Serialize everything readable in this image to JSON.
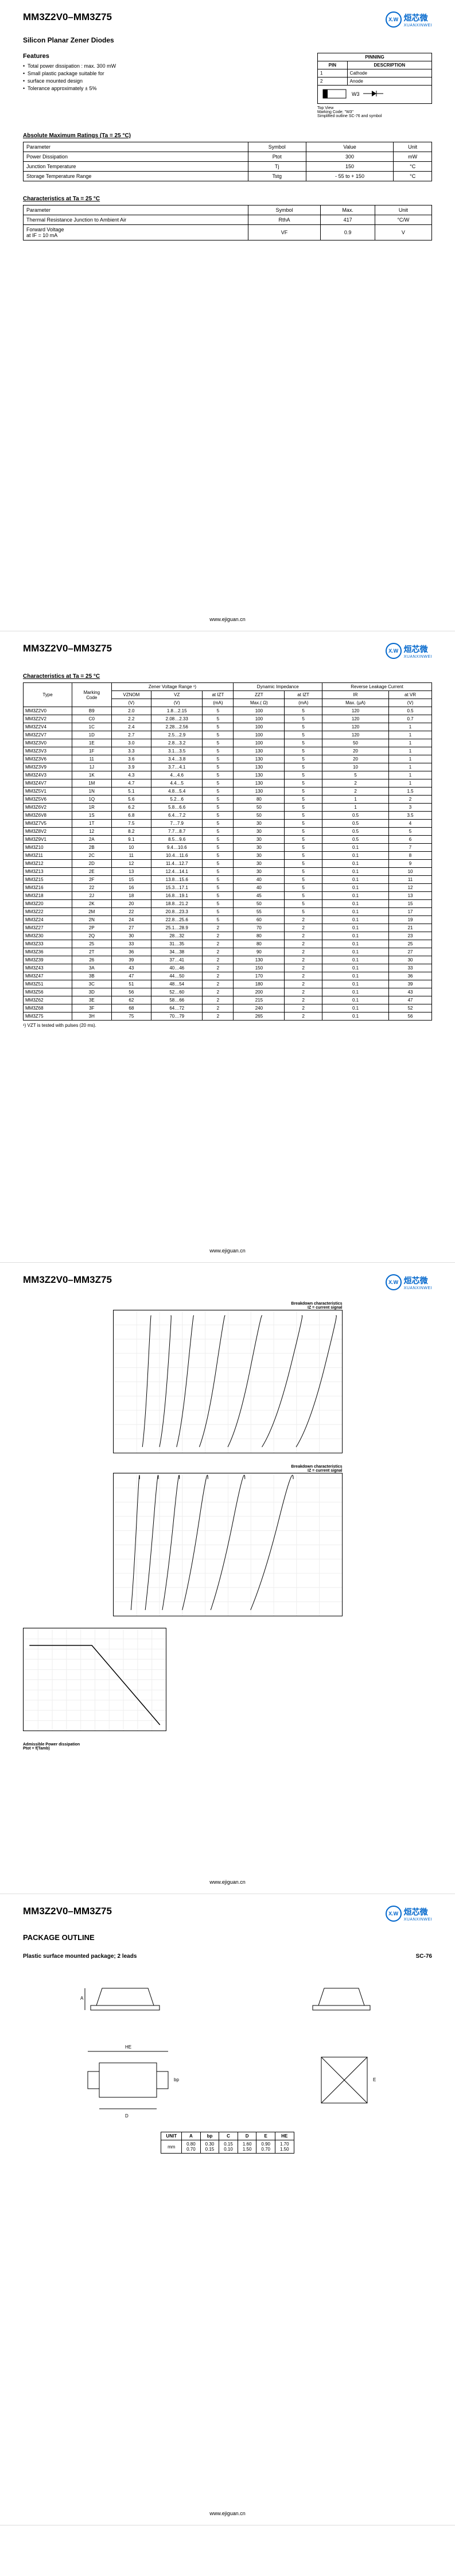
{
  "header": {
    "title": "MM3Z2V0–MM3Z75",
    "logo_cn": "烜芯微",
    "logo_en": "XUANXINWEI",
    "logo_abbr": "X.W"
  },
  "page1": {
    "subtitle": "Silicon Planar Zener Diodes",
    "features_title": "Features",
    "features": [
      "Total power dissipation : max. 300 mW",
      "Small plastic package suitable for",
      "surface mounted design",
      "Tolerance approximately ± 5%"
    ],
    "pinning": {
      "title": "PINNING",
      "cols": [
        "PIN",
        "DESCRIPTION"
      ],
      "rows": [
        [
          "1",
          "Cathode"
        ],
        [
          "2",
          "Anode"
        ]
      ],
      "label": "W3",
      "note1": "Top View",
      "note2": "Marking Code: \"W3\"",
      "note3": "Simplified outline SC-76 and symbol"
    },
    "abs_max": {
      "title": "Absolute Maximum Ratings (Ta = 25 °C)",
      "cols": [
        "Parameter",
        "Symbol",
        "Value",
        "Unit"
      ],
      "rows": [
        [
          "Power Dissipation",
          "Ptot",
          "300",
          "mW"
        ],
        [
          "Junction Temperature",
          "Tj",
          "150",
          "°C"
        ],
        [
          "Storage Temperature Range",
          "Tstg",
          "- 55 to + 150",
          "°C"
        ]
      ]
    },
    "char25": {
      "title": "Characteristics at Ta = 25 °C",
      "cols": [
        "Parameter",
        "Symbol",
        "Max.",
        "Unit"
      ],
      "rows": [
        [
          "Thermal Resistance Junction to Ambient Air",
          "RthA",
          "417",
          "°C/W"
        ],
        [
          "Forward Voltage\nat IF = 10 mA",
          "VF",
          "0.9",
          "V"
        ]
      ]
    }
  },
  "page2": {
    "char_title": "Characteristics at Ta = 25 °C",
    "headers": {
      "type": "Type",
      "marking": "Marking\nCode",
      "zener": "Zener Voltage Range ¹)",
      "dynamic": "Dynamic Impedance",
      "reverse": "Reverse Leakage Current",
      "vznom": "VZNOM",
      "vz": "VZ",
      "atiz": "at IZT",
      "zzt": "ZZT",
      "atiz2": "at IZT",
      "ir": "IR",
      "atvr": "at VR",
      "unit_v": "(V)",
      "unit_v2": "(V)",
      "unit_ma": "(mA)",
      "unit_ohm": "Max.( Ω)",
      "unit_ma2": "(mA)",
      "unit_ua": "Max. (μA)",
      "unit_v3": "(V)"
    },
    "rows": [
      [
        "MM3Z2V0",
        "B9",
        "2.0",
        "1.8…2.15",
        "5",
        "100",
        "5",
        "120",
        "0.5"
      ],
      [
        "MM3Z2V2",
        "C0",
        "2.2",
        "2.08…2.33",
        "5",
        "100",
        "5",
        "120",
        "0.7"
      ],
      [
        "MM3Z2V4",
        "1C",
        "2.4",
        "2.28…2.56",
        "5",
        "100",
        "5",
        "120",
        "1"
      ],
      [
        "MM3Z2V7",
        "1D",
        "2.7",
        "2.5…2.9",
        "5",
        "100",
        "5",
        "120",
        "1"
      ],
      [
        "MM3Z3V0",
        "1E",
        "3.0",
        "2.8…3.2",
        "5",
        "100",
        "5",
        "50",
        "1"
      ],
      [
        "MM3Z3V3",
        "1F",
        "3.3",
        "3.1…3.5",
        "5",
        "130",
        "5",
        "20",
        "1"
      ],
      [
        "MM3Z3V6",
        "11",
        "3.6",
        "3.4…3.8",
        "5",
        "130",
        "5",
        "20",
        "1"
      ],
      [
        "MM3Z3V9",
        "1J",
        "3.9",
        "3.7…4.1",
        "5",
        "130",
        "5",
        "10",
        "1"
      ],
      [
        "MM3Z4V3",
        "1K",
        "4.3",
        "4…4.6",
        "5",
        "130",
        "5",
        "5",
        "1"
      ],
      [
        "MM3Z4V7",
        "1M",
        "4.7",
        "4.4…5",
        "5",
        "130",
        "5",
        "2",
        "1"
      ],
      [
        "MM3Z5V1",
        "1N",
        "5.1",
        "4.8…5.4",
        "5",
        "130",
        "5",
        "2",
        "1.5"
      ],
      [
        "MM3Z5V6",
        "1Q",
        "5.6",
        "5.2…6",
        "5",
        "80",
        "5",
        "1",
        "2"
      ],
      [
        "MM3Z6V2",
        "1R",
        "6.2",
        "5.8…6.6",
        "5",
        "50",
        "5",
        "1",
        "3"
      ],
      [
        "MM3Z6V8",
        "1S",
        "6.8",
        "6.4…7.2",
        "5",
        "50",
        "5",
        "0.5",
        "3.5"
      ],
      [
        "MM3Z7V5",
        "1T",
        "7.5",
        "7…7.9",
        "5",
        "30",
        "5",
        "0.5",
        "4"
      ],
      [
        "MM3Z8V2",
        "12",
        "8.2",
        "7.7…8.7",
        "5",
        "30",
        "5",
        "0.5",
        "5"
      ],
      [
        "MM3Z9V1",
        "2A",
        "9.1",
        "8.5…9.6",
        "5",
        "30",
        "5",
        "0.5",
        "6"
      ],
      [
        "MM3Z10",
        "2B",
        "10",
        "9.4…10.6",
        "5",
        "30",
        "5",
        "0.1",
        "7"
      ],
      [
        "MM3Z11",
        "2C",
        "11",
        "10.4…11.6",
        "5",
        "30",
        "5",
        "0.1",
        "8"
      ],
      [
        "MM3Z12",
        "2D",
        "12",
        "11.4…12.7",
        "5",
        "30",
        "5",
        "0.1",
        "9"
      ],
      [
        "MM3Z13",
        "2E",
        "13",
        "12.4…14.1",
        "5",
        "30",
        "5",
        "0.1",
        "10"
      ],
      [
        "MM3Z15",
        "2F",
        "15",
        "13.8…15.6",
        "5",
        "40",
        "5",
        "0.1",
        "11"
      ],
      [
        "MM3Z16",
        "22",
        "16",
        "15.3…17.1",
        "5",
        "40",
        "5",
        "0.1",
        "12"
      ],
      [
        "MM3Z18",
        "2J",
        "18",
        "16.8…19.1",
        "5",
        "45",
        "5",
        "0.1",
        "13"
      ],
      [
        "MM3Z20",
        "2K",
        "20",
        "18.8…21.2",
        "5",
        "50",
        "5",
        "0.1",
        "15"
      ],
      [
        "MM3Z22",
        "2M",
        "22",
        "20.8…23.3",
        "5",
        "55",
        "5",
        "0.1",
        "17"
      ],
      [
        "MM3Z24",
        "2N",
        "24",
        "22.8…25.6",
        "5",
        "60",
        "2",
        "0.1",
        "19"
      ],
      [
        "MM3Z27",
        "2P",
        "27",
        "25.1…28.9",
        "2",
        "70",
        "2",
        "0.1",
        "21"
      ],
      [
        "MM3Z30",
        "2Q",
        "30",
        "28…32",
        "2",
        "80",
        "2",
        "0.1",
        "23"
      ],
      [
        "MM3Z33",
        "25",
        "33",
        "31…35",
        "2",
        "80",
        "2",
        "0.1",
        "25"
      ],
      [
        "MM3Z36",
        "2T",
        "36",
        "34…38",
        "2",
        "90",
        "2",
        "0.1",
        "27"
      ],
      [
        "MM3Z39",
        "26",
        "39",
        "37…41",
        "2",
        "130",
        "2",
        "0.1",
        "30"
      ],
      [
        "MM3Z43",
        "3A",
        "43",
        "40…46",
        "2",
        "150",
        "2",
        "0.1",
        "33"
      ],
      [
        "MM3Z47",
        "3B",
        "47",
        "44…50",
        "2",
        "170",
        "2",
        "0.1",
        "36"
      ],
      [
        "MM3Z51",
        "3C",
        "51",
        "48…54",
        "2",
        "180",
        "2",
        "0.1",
        "39"
      ],
      [
        "MM3Z56",
        "3D",
        "56",
        "52…60",
        "2",
        "200",
        "2",
        "0.1",
        "43"
      ],
      [
        "MM3Z62",
        "3E",
        "62",
        "58…66",
        "2",
        "215",
        "2",
        "0.1",
        "47"
      ],
      [
        "MM3Z68",
        "3F",
        "68",
        "64…72",
        "2",
        "240",
        "2",
        "0.1",
        "52"
      ],
      [
        "MM3Z75",
        "3H",
        "75",
        "70…79",
        "2",
        "265",
        "2",
        "0.1",
        "56"
      ]
    ],
    "note": "¹) VZT is tested with pulses (20 ms)."
  },
  "page3": {
    "chart1_title": "Breakdown characteristics\nIZ = current signal",
    "chart2_title": "Breakdown characteristics\nIZ = current signal",
    "chart3_title": "Admissible Power dissipation\nPtot = f(Tamb)"
  },
  "page4": {
    "title": "PACKAGE OUTLINE",
    "subtitle": "Plastic surface mounted package; 2 leads",
    "pkg_type": "SC-76",
    "dim_headers": [
      "UNIT",
      "A",
      "bp",
      "C",
      "D",
      "E",
      "HE"
    ],
    "dim_rows": [
      [
        "mm",
        "0.80\n0.70",
        "0.30\n0.15",
        "0.15\n0.10",
        "1.60\n1.50",
        "0.90\n0.70",
        "1.70\n1.50"
      ]
    ]
  },
  "footer": "www.ejiguan.cn"
}
